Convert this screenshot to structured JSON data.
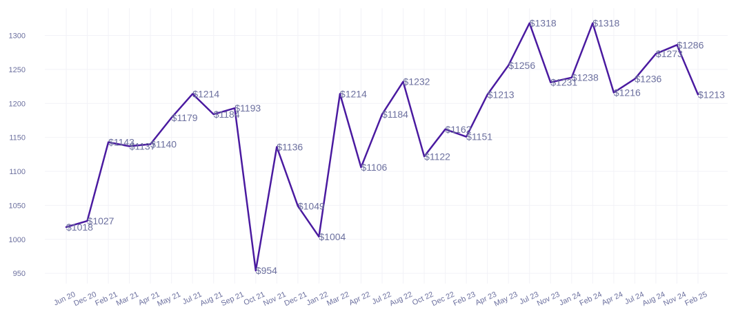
{
  "chart_data": {
    "type": "line",
    "title": "",
    "xlabel": "",
    "ylabel": "",
    "ylim": [
      935,
      1340
    ],
    "yticks": [
      950,
      1000,
      1050,
      1100,
      1150,
      1200,
      1250,
      1300
    ],
    "grid": true,
    "line_color": "#4a1aa0",
    "categories": [
      "Jun 20",
      "Dec 20",
      "Feb 21",
      "Mar 21",
      "Apr 21",
      "May 21",
      "Jul 21",
      "Aug 21",
      "Sep 21",
      "Oct 21",
      "Nov 21",
      "Dec 21",
      "Jan 22",
      "Mar 22",
      "Apr 22",
      "Jul 22",
      "Aug 22",
      "Oct 22",
      "Dec 22",
      "Feb 23",
      "Apr 23",
      "May 23",
      "Jul 23",
      "Nov 23",
      "Jan 24",
      "Feb 24",
      "Apr 24",
      "Jul 24",
      "Aug 24",
      "Nov 24",
      "Feb 25"
    ],
    "values": [
      1018,
      1027,
      1143,
      1137,
      1140,
      1179,
      1214,
      1184,
      1193,
      954,
      1136,
      1049,
      1004,
      1214,
      1106,
      1184,
      1232,
      1122,
      1162,
      1151,
      1213,
      1256,
      1318,
      1231,
      1238,
      1318,
      1216,
      1236,
      1273,
      1286,
      1213
    ],
    "labels": [
      "$1018",
      "$1027",
      "$1143",
      "$1137",
      "$1140",
      "$1179",
      "$1214",
      "$1184",
      "$1193",
      "$954",
      "$1136",
      "$1049",
      "$1004",
      "$1214",
      "$1106",
      "$1184",
      "$1232",
      "$1122",
      "$1162",
      "$1151",
      "$1213",
      "$1256",
      "$1318",
      "$1231",
      "$1238",
      "$1318",
      "$1216",
      "$1236",
      "$1273",
      "$1286",
      "$1213"
    ]
  }
}
